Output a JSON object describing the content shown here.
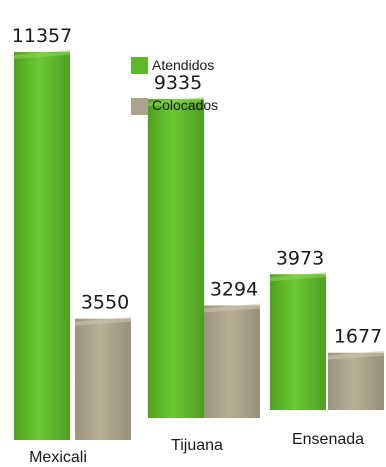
{
  "chart_data": {
    "type": "bar",
    "categories": [
      "Mexicali",
      "Tijuana",
      "Ensenada"
    ],
    "series": [
      {
        "name": "Atendidos",
        "values": [
          11357,
          9335,
          3973
        ],
        "color": "#5fb829"
      },
      {
        "name": "Colocados",
        "values": [
          3550,
          3294,
          1677
        ],
        "color": "#aea48d"
      }
    ],
    "data_labels": [
      [
        "11357",
        "9335",
        "3973"
      ],
      [
        "3550",
        "3294",
        "1677"
      ]
    ],
    "legend": "top-right",
    "grid": false,
    "ylim": [
      0,
      11357
    ]
  }
}
